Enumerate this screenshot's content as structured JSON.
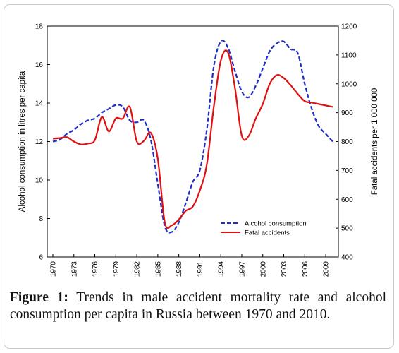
{
  "chart_data": {
    "type": "line",
    "x": [
      1970,
      1971,
      1972,
      1973,
      1974,
      1975,
      1976,
      1977,
      1978,
      1979,
      1980,
      1981,
      1982,
      1983,
      1984,
      1985,
      1986,
      1987,
      1988,
      1989,
      1990,
      1991,
      1992,
      1993,
      1994,
      1995,
      1996,
      1997,
      1998,
      1999,
      2000,
      2001,
      2002,
      2003,
      2004,
      2005,
      2006,
      2007,
      2008,
      2009,
      2010
    ],
    "xticks": [
      "1970",
      "1973",
      "1976",
      "1979",
      "1982",
      "1985",
      "1988",
      "1991",
      "1994",
      "1997",
      "2000",
      "2003",
      "2006",
      "2009"
    ],
    "ylabel_left": "Alcohol consumption in litres per capita",
    "ylabel_right": "Fatal accidents per 1 000 000",
    "ylim_left": [
      6,
      18
    ],
    "ylim_right": [
      400,
      1200
    ],
    "yticks_left": [
      "6",
      "8",
      "10",
      "12",
      "14",
      "16",
      "18"
    ],
    "yticks_right": [
      "400",
      "500",
      "600",
      "700",
      "800",
      "900",
      "1000",
      "1100",
      "1200"
    ],
    "grid": false,
    "legend_position": "bottom-right",
    "series": [
      {
        "name": "Alcohol consumption",
        "axis": "left",
        "style": "dashed",
        "color": "#1f2ec8",
        "values": [
          12.0,
          12.1,
          12.4,
          12.6,
          12.9,
          13.1,
          13.2,
          13.5,
          13.7,
          13.9,
          13.8,
          13.1,
          13.0,
          13.1,
          12.1,
          9.8,
          7.6,
          7.3,
          7.8,
          8.8,
          9.9,
          10.5,
          12.6,
          15.9,
          17.2,
          16.9,
          15.7,
          14.6,
          14.3,
          14.9,
          15.8,
          16.7,
          17.1,
          17.2,
          16.8,
          16.6,
          15.0,
          13.7,
          12.8,
          12.4,
          12.0
        ]
      },
      {
        "name": "Fatal accidents",
        "axis": "right",
        "style": "solid",
        "color": "#e01010",
        "values": [
          810,
          812,
          815,
          800,
          790,
          793,
          805,
          885,
          835,
          880,
          880,
          920,
          800,
          802,
          830,
          740,
          520,
          510,
          530,
          560,
          575,
          630,
          720,
          920,
          1080,
          1110,
          990,
          820,
          820,
          880,
          930,
          1000,
          1030,
          1020,
          995,
          965,
          940,
          935,
          930,
          925,
          920
        ]
      }
    ]
  },
  "caption": {
    "label": "Figure 1:",
    "text": " Trends in male accident mortality rate and alcohol consumption per capita in Russia between 1970 and 2010."
  }
}
